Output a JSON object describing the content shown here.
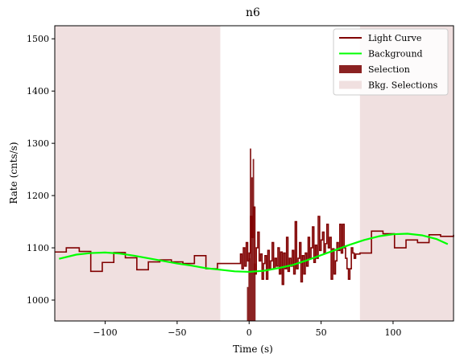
{
  "chart_data": {
    "type": "line",
    "title": "n6",
    "xlabel": "Time (s)",
    "ylabel": "Rate (cnts/s)",
    "xlim": [
      -135,
      142
    ],
    "ylim": [
      960,
      1525
    ],
    "x_ticks": [
      -100,
      -50,
      0,
      50,
      100
    ],
    "y_ticks": [
      1000,
      1100,
      1200,
      1300,
      1400,
      1500
    ],
    "tick_labels_x": [
      "−100",
      "−50",
      "0",
      "50",
      "100"
    ],
    "tick_labels_y": [
      "1000",
      "1100",
      "1200",
      "1300",
      "1400",
      "1500"
    ],
    "grid": false,
    "legend": {
      "placement": "top-right",
      "entries": [
        {
          "label": "Light Curve",
          "kind": "line",
          "color": "#800000"
        },
        {
          "label": "Background",
          "kind": "line",
          "color": "#00ff00"
        },
        {
          "label": "Selection",
          "kind": "patch",
          "color": "#8b2222"
        },
        {
          "label": "Bkg. Selections",
          "kind": "patch",
          "color": "#f0e0e0"
        }
      ]
    },
    "colors": {
      "light_curve": "#800000",
      "background": "#00ff00",
      "selection": "#8b2222",
      "bkg_selection": "#f0e0e0"
    },
    "series": [
      {
        "name": "Light Curve",
        "kind": "step",
        "x": [
          -135,
          -127,
          -118,
          -110,
          -102,
          -94,
          -86,
          -78,
          -70,
          -62,
          -54,
          -46,
          -38,
          -30,
          -22,
          -14,
          -6,
          -5,
          -4,
          -3,
          -2,
          -1,
          0,
          1,
          2,
          3,
          4,
          5,
          6,
          7,
          8,
          9,
          10,
          11,
          12,
          13,
          14,
          15,
          16,
          17,
          18,
          19,
          20,
          21,
          22,
          23,
          24,
          25,
          26,
          27,
          28,
          29,
          30,
          31,
          32,
          33,
          34,
          35,
          36,
          37,
          38,
          39,
          40,
          41,
          42,
          43,
          44,
          45,
          46,
          47,
          48,
          49,
          50,
          51,
          52,
          53,
          54,
          55,
          56,
          57,
          58,
          59,
          60,
          61,
          62,
          63,
          64,
          65,
          66,
          67,
          68,
          69,
          70,
          71,
          72,
          73,
          74,
          75,
          76,
          77,
          85,
          93,
          101,
          109,
          117,
          125,
          133,
          142
        ],
        "y": [
          1092,
          1100,
          1093,
          1055,
          1072,
          1091,
          1081,
          1058,
          1073,
          1077,
          1073,
          1070,
          1085,
          1060,
          1070,
          1070,
          1088,
          1060,
          1100,
          1065,
          1110,
          1075,
          1090,
          1160,
          1120,
          1178,
          1050,
          1100,
          1130,
          1075,
          1088,
          1040,
          1070,
          1085,
          1040,
          1095,
          1060,
          1075,
          1110,
          1060,
          1080,
          1065,
          1100,
          1050,
          1092,
          1030,
          1090,
          1060,
          1120,
          1055,
          1080,
          1065,
          1095,
          1050,
          1150,
          1060,
          1080,
          1110,
          1035,
          1085,
          1050,
          1090,
          1065,
          1120,
          1080,
          1100,
          1140,
          1072,
          1105,
          1080,
          1160,
          1095,
          1115,
          1130,
          1090,
          1108,
          1145,
          1100,
          1120,
          1040,
          1098,
          1050,
          1075,
          1110,
          1095,
          1145,
          1090,
          1145,
          1100,
          1080,
          1060,
          1040,
          1060,
          1100,
          1090,
          1080,
          1088,
          1088,
          1088,
          1090,
          1132,
          1127,
          1100,
          1115,
          1110,
          1125,
          1122,
          1125
        ]
      },
      {
        "name": "Background",
        "kind": "line",
        "x": [
          -132,
          -120,
          -110,
          -100,
          -90,
          -80,
          -70,
          -60,
          -50,
          -40,
          -30,
          -20,
          -10,
          0,
          10,
          20,
          30,
          40,
          50,
          60,
          70,
          80,
          90,
          100,
          110,
          120,
          130,
          138
        ],
        "y": [
          1079,
          1087,
          1090,
          1091,
          1089,
          1085,
          1080,
          1075,
          1070,
          1066,
          1061,
          1058,
          1055,
          1054,
          1056,
          1061,
          1067,
          1076,
          1086,
          1096,
          1106,
          1115,
          1122,
          1126,
          1127,
          1124,
          1117,
          1107
        ]
      }
    ],
    "selection": {
      "label": "Selection",
      "x_range": [
        -1.5,
        4.5
      ],
      "step_x": [
        -1.5,
        -0.5,
        0.5,
        1.5,
        2.5,
        3.5
      ],
      "step_y": [
        1025,
        1080,
        1290,
        1235,
        1270,
        1070
      ]
    },
    "bkg_selections": [
      {
        "label": "Bkg. Selections",
        "x_range": [
          -135,
          -20
        ]
      },
      {
        "label": "Bkg. Selections",
        "x_range": [
          77,
          142
        ]
      }
    ]
  }
}
